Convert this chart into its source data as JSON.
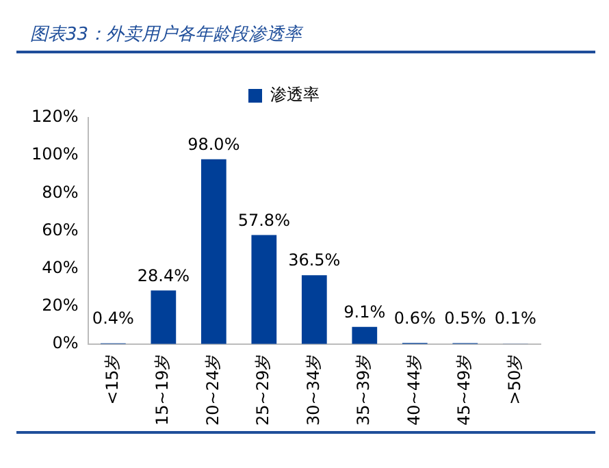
{
  "chart_data": {
    "type": "bar",
    "title": "图表33：外卖用户各年龄段渗透率",
    "categories": [
      "<15岁",
      "15~19岁",
      "20~24岁",
      "25~29岁",
      "30~34岁",
      "35~39岁",
      "40~44岁",
      "45~49岁",
      ">50岁"
    ],
    "series": [
      {
        "name": "渗透率",
        "color": "#003f98",
        "values": [
          0.4,
          28.4,
          98.0,
          57.8,
          36.5,
          9.1,
          0.6,
          0.5,
          0.1
        ],
        "value_labels": [
          "0.4%",
          "28.4%",
          "98.0%",
          "57.8%",
          "36.5%",
          "9.1%",
          "0.6%",
          "0.5%",
          "0.1%"
        ]
      }
    ],
    "ylim": [
      0,
      120
    ],
    "yticks": [
      {
        "value": 0,
        "label": "0%"
      },
      {
        "value": 20,
        "label": "20%"
      },
      {
        "value": 40,
        "label": "40%"
      },
      {
        "value": 60,
        "label": "60%"
      },
      {
        "value": 80,
        "label": "80%"
      },
      {
        "value": 100,
        "label": "100%"
      },
      {
        "value": 120,
        "label": "120%"
      }
    ],
    "grid": false,
    "legend": "top"
  }
}
